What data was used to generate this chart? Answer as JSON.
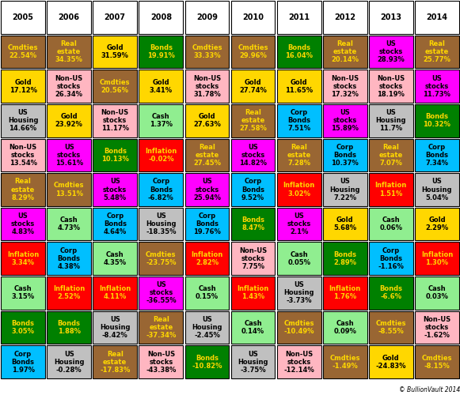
{
  "years": [
    "2005",
    "2006",
    "2007",
    "2008",
    "2009",
    "2010",
    "2011",
    "2012",
    "2013",
    "2014"
  ],
  "cells": [
    [
      {
        "label": "Cmdties",
        "value": "22.54%",
        "bg": "#996633",
        "fg": "#FFD700"
      },
      {
        "label": "Real estate",
        "value": "34.35%",
        "bg": "#996633",
        "fg": "#FFD700"
      },
      {
        "label": "Gold",
        "value": "31.59%",
        "bg": "#FFD700",
        "fg": "#000000"
      },
      {
        "label": "Bonds",
        "value": "19.91%",
        "bg": "#008000",
        "fg": "#FFD700"
      },
      {
        "label": "Cmdties",
        "value": "33.33%",
        "bg": "#996633",
        "fg": "#FFD700"
      },
      {
        "label": "Cmdties",
        "value": "29.96%",
        "bg": "#996633",
        "fg": "#FFD700"
      },
      {
        "label": "Bonds",
        "value": "16.04%",
        "bg": "#008000",
        "fg": "#FFD700"
      },
      {
        "label": "Real estate",
        "value": "20.14%",
        "bg": "#996633",
        "fg": "#FFD700"
      },
      {
        "label": "US stocks",
        "value": "28.93%",
        "bg": "#FF00FF",
        "fg": "#000000"
      },
      {
        "label": "Real estate",
        "value": "25.77%",
        "bg": "#996633",
        "fg": "#FFD700"
      }
    ],
    [
      {
        "label": "Gold",
        "value": "17.12%",
        "bg": "#FFD700",
        "fg": "#000000"
      },
      {
        "label": "Non-US stocks",
        "value": "26.34%",
        "bg": "#FFB6C1",
        "fg": "#000000"
      },
      {
        "label": "Cmdties",
        "value": "20.56%",
        "bg": "#996633",
        "fg": "#FFD700"
      },
      {
        "label": "Gold",
        "value": "3.41%",
        "bg": "#FFD700",
        "fg": "#000000"
      },
      {
        "label": "Non-US stocks",
        "value": "31.78%",
        "bg": "#FFB6C1",
        "fg": "#000000"
      },
      {
        "label": "Gold",
        "value": "27.74%",
        "bg": "#FFD700",
        "fg": "#000000"
      },
      {
        "label": "Gold",
        "value": "11.65%",
        "bg": "#FFD700",
        "fg": "#000000"
      },
      {
        "label": "Non-US stocks",
        "value": "17.32%",
        "bg": "#FFB6C1",
        "fg": "#000000"
      },
      {
        "label": "Non-US stocks",
        "value": "18.19%",
        "bg": "#FFB6C1",
        "fg": "#000000"
      },
      {
        "label": "US stocks",
        "value": "11.73%",
        "bg": "#FF00FF",
        "fg": "#000000"
      }
    ],
    [
      {
        "label": "US Housing",
        "value": "14.66%",
        "bg": "#C0C0C0",
        "fg": "#000000"
      },
      {
        "label": "Gold",
        "value": "23.92%",
        "bg": "#FFD700",
        "fg": "#000000"
      },
      {
        "label": "Non-US stocks",
        "value": "11.17%",
        "bg": "#FFB6C1",
        "fg": "#000000"
      },
      {
        "label": "Cash",
        "value": "1.37%",
        "bg": "#90EE90",
        "fg": "#000000"
      },
      {
        "label": "Gold",
        "value": "27.63%",
        "bg": "#FFD700",
        "fg": "#000000"
      },
      {
        "label": "Real estate",
        "value": "27.58%",
        "bg": "#996633",
        "fg": "#FFD700"
      },
      {
        "label": "Corp Bonds",
        "value": "7.51%",
        "bg": "#00BFFF",
        "fg": "#000000"
      },
      {
        "label": "US stocks",
        "value": "15.89%",
        "bg": "#FF00FF",
        "fg": "#000000"
      },
      {
        "label": "US Housing",
        "value": "11.7%",
        "bg": "#C0C0C0",
        "fg": "#000000"
      },
      {
        "label": "Bonds",
        "value": "10.32%",
        "bg": "#008000",
        "fg": "#FFD700"
      }
    ],
    [
      {
        "label": "Non-US stocks",
        "value": "13.54%",
        "bg": "#FFB6C1",
        "fg": "#000000"
      },
      {
        "label": "US stocks",
        "value": "15.61%",
        "bg": "#FF00FF",
        "fg": "#000000"
      },
      {
        "label": "Bonds",
        "value": "10.13%",
        "bg": "#008000",
        "fg": "#FFD700"
      },
      {
        "label": "Inflation",
        "value": "-0.02%",
        "bg": "#FF0000",
        "fg": "#FFD700"
      },
      {
        "label": "Real estate",
        "value": "27.45%",
        "bg": "#996633",
        "fg": "#FFD700"
      },
      {
        "label": "US stocks",
        "value": "14.82%",
        "bg": "#FF00FF",
        "fg": "#000000"
      },
      {
        "label": "Real estate",
        "value": "7.28%",
        "bg": "#996633",
        "fg": "#FFD700"
      },
      {
        "label": "Corp Bonds",
        "value": "10.37%",
        "bg": "#00BFFF",
        "fg": "#000000"
      },
      {
        "label": "Real estate",
        "value": "7.07%",
        "bg": "#996633",
        "fg": "#FFD700"
      },
      {
        "label": "Corp Bonds",
        "value": "7.34%",
        "bg": "#00BFFF",
        "fg": "#000000"
      }
    ],
    [
      {
        "label": "Real estate",
        "value": "8.29%",
        "bg": "#996633",
        "fg": "#FFD700"
      },
      {
        "label": "Cmdties",
        "value": "13.51%",
        "bg": "#996633",
        "fg": "#FFD700"
      },
      {
        "label": "US stocks",
        "value": "5.48%",
        "bg": "#FF00FF",
        "fg": "#000000"
      },
      {
        "label": "Corp Bonds",
        "value": "-6.82%",
        "bg": "#00BFFF",
        "fg": "#000000"
      },
      {
        "label": "US stocks",
        "value": "25.94%",
        "bg": "#FF00FF",
        "fg": "#000000"
      },
      {
        "label": "Corp Bonds",
        "value": "9.52%",
        "bg": "#00BFFF",
        "fg": "#000000"
      },
      {
        "label": "Inflation",
        "value": "3.02%",
        "bg": "#FF0000",
        "fg": "#FFD700"
      },
      {
        "label": "US Housing",
        "value": "7.22%",
        "bg": "#C0C0C0",
        "fg": "#000000"
      },
      {
        "label": "Inflation",
        "value": "1.51%",
        "bg": "#FF0000",
        "fg": "#FFD700"
      },
      {
        "label": "US Housing",
        "value": "5.04%",
        "bg": "#C0C0C0",
        "fg": "#000000"
      }
    ],
    [
      {
        "label": "US stocks",
        "value": "4.83%",
        "bg": "#FF00FF",
        "fg": "#000000"
      },
      {
        "label": "Cash",
        "value": "4.73%",
        "bg": "#90EE90",
        "fg": "#000000"
      },
      {
        "label": "Corp Bonds",
        "value": "4.64%",
        "bg": "#00BFFF",
        "fg": "#000000"
      },
      {
        "label": "US Housing",
        "value": "-18.35%",
        "bg": "#C0C0C0",
        "fg": "#000000"
      },
      {
        "label": "Corp Bonds",
        "value": "19.76%",
        "bg": "#00BFFF",
        "fg": "#000000"
      },
      {
        "label": "Bonds",
        "value": "8.47%",
        "bg": "#008000",
        "fg": "#FFD700"
      },
      {
        "label": "US stocks",
        "value": "2.1%",
        "bg": "#FF00FF",
        "fg": "#000000"
      },
      {
        "label": "Gold",
        "value": "5.68%",
        "bg": "#FFD700",
        "fg": "#000000"
      },
      {
        "label": "Cash",
        "value": "0.06%",
        "bg": "#90EE90",
        "fg": "#000000"
      },
      {
        "label": "Gold",
        "value": "2.29%",
        "bg": "#FFD700",
        "fg": "#000000"
      }
    ],
    [
      {
        "label": "Inflation",
        "value": "3.34%",
        "bg": "#FF0000",
        "fg": "#FFD700"
      },
      {
        "label": "Corp Bonds",
        "value": "4.38%",
        "bg": "#00BFFF",
        "fg": "#000000"
      },
      {
        "label": "Cash",
        "value": "4.35%",
        "bg": "#90EE90",
        "fg": "#000000"
      },
      {
        "label": "Cmdties",
        "value": "-23.75%",
        "bg": "#996633",
        "fg": "#FFD700"
      },
      {
        "label": "Inflation",
        "value": "2.82%",
        "bg": "#FF0000",
        "fg": "#FFD700"
      },
      {
        "label": "Non-US stocks",
        "value": "7.75%",
        "bg": "#FFB6C1",
        "fg": "#000000"
      },
      {
        "label": "Cash",
        "value": "0.05%",
        "bg": "#90EE90",
        "fg": "#000000"
      },
      {
        "label": "Bonds",
        "value": "2.89%",
        "bg": "#008000",
        "fg": "#FFD700"
      },
      {
        "label": "Corp Bonds",
        "value": "-1.16%",
        "bg": "#00BFFF",
        "fg": "#000000"
      },
      {
        "label": "Inflation",
        "value": "1.30%",
        "bg": "#FF0000",
        "fg": "#FFD700"
      }
    ],
    [
      {
        "label": "Cash",
        "value": "3.15%",
        "bg": "#90EE90",
        "fg": "#000000"
      },
      {
        "label": "Inflation",
        "value": "2.52%",
        "bg": "#FF0000",
        "fg": "#FFD700"
      },
      {
        "label": "Inflation",
        "value": "4.11%",
        "bg": "#FF0000",
        "fg": "#FFD700"
      },
      {
        "label": "US stocks",
        "value": "-36.55%",
        "bg": "#FF00FF",
        "fg": "#000000"
      },
      {
        "label": "Cash",
        "value": "0.15%",
        "bg": "#90EE90",
        "fg": "#000000"
      },
      {
        "label": "Inflation",
        "value": "1.43%",
        "bg": "#FF0000",
        "fg": "#FFD700"
      },
      {
        "label": "US Housing",
        "value": "-3.73%",
        "bg": "#C0C0C0",
        "fg": "#000000"
      },
      {
        "label": "Inflation",
        "value": "1.76%",
        "bg": "#FF0000",
        "fg": "#FFD700"
      },
      {
        "label": "Bonds",
        "value": "-6.6%",
        "bg": "#008000",
        "fg": "#FFD700"
      },
      {
        "label": "Cash",
        "value": "0.03%",
        "bg": "#90EE90",
        "fg": "#000000"
      }
    ],
    [
      {
        "label": "Bonds",
        "value": "3.05%",
        "bg": "#008000",
        "fg": "#FFD700"
      },
      {
        "label": "Bonds",
        "value": "1.88%",
        "bg": "#008000",
        "fg": "#FFD700"
      },
      {
        "label": "US Housing",
        "value": "-8.42%",
        "bg": "#C0C0C0",
        "fg": "#000000"
      },
      {
        "label": "Real estate",
        "value": "-37.34%",
        "bg": "#996633",
        "fg": "#FFD700"
      },
      {
        "label": "US Housing",
        "value": "-2.45%",
        "bg": "#C0C0C0",
        "fg": "#000000"
      },
      {
        "label": "Cash",
        "value": "0.14%",
        "bg": "#90EE90",
        "fg": "#000000"
      },
      {
        "label": "Cmdties",
        "value": "-10.49%",
        "bg": "#996633",
        "fg": "#FFD700"
      },
      {
        "label": "Cash",
        "value": "0.09%",
        "bg": "#90EE90",
        "fg": "#000000"
      },
      {
        "label": "Cmdties",
        "value": "-8.55%",
        "bg": "#996633",
        "fg": "#FFD700"
      },
      {
        "label": "Non-US stocks",
        "value": "-1.62%",
        "bg": "#FFB6C1",
        "fg": "#000000"
      }
    ],
    [
      {
        "label": "Corp Bonds",
        "value": "1.97%",
        "bg": "#00BFFF",
        "fg": "#000000"
      },
      {
        "label": "US Housing",
        "value": "-0.28%",
        "bg": "#C0C0C0",
        "fg": "#000000"
      },
      {
        "label": "Real estate",
        "value": "-17.83%",
        "bg": "#996633",
        "fg": "#FFD700"
      },
      {
        "label": "Non-US stocks",
        "value": "-43.38%",
        "bg": "#FFB6C1",
        "fg": "#000000"
      },
      {
        "label": "Bonds",
        "value": "-10.82%",
        "bg": "#008000",
        "fg": "#FFD700"
      },
      {
        "label": "US Housing",
        "value": "-3.75%",
        "bg": "#C0C0C0",
        "fg": "#000000"
      },
      {
        "label": "Non-US stocks",
        "value": "-12.14%",
        "bg": "#FFB6C1",
        "fg": "#000000"
      },
      {
        "label": "Cmdties",
        "value": "-1.49%",
        "bg": "#996633",
        "fg": "#FFD700"
      },
      {
        "label": "Gold",
        "value": "-24.83%",
        "bg": "#FFD700",
        "fg": "#000000"
      },
      {
        "label": "Cmdties",
        "value": "-8.15%",
        "bg": "#996633",
        "fg": "#FFD700"
      }
    ]
  ],
  "years_header_bg": "#FFFFFF",
  "years_header_fg": "#000000",
  "footer_text": "© BullionVault 2014",
  "footer_fg": "#000000",
  "label_splits": {
    "Non-US stocks": [
      "Non-US",
      "stocks"
    ],
    "Real estate": [
      "Real",
      "estate"
    ],
    "US Housing": [
      "US",
      "Housing"
    ],
    "US stocks": [
      "US",
      "stocks"
    ],
    "Corp Bonds": [
      "Corp",
      "Bonds"
    ]
  }
}
